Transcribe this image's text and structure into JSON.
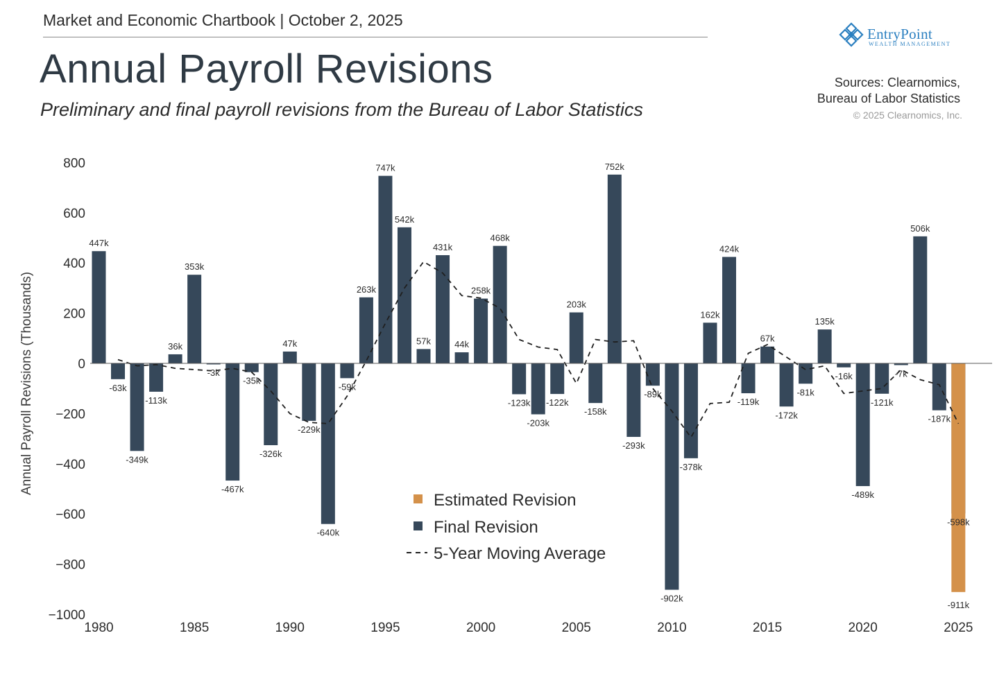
{
  "header": {
    "top_line": "Market and Economic Chartbook | October 2, 2025",
    "title": "Annual Payroll Revisions",
    "subtitle": "Preliminary and final payroll revisions from the Bureau of Labor Statistics"
  },
  "logo": {
    "word": "EntryPoint",
    "sub": "WEALTH MANAGEMENT",
    "icon": "diamond-logo-icon"
  },
  "sources": {
    "line1": "Sources: Clearnomics,",
    "line2": "Bureau of Labor Statistics",
    "copyright": "© 2025 Clearnomics, Inc."
  },
  "colors": {
    "final": "#36485a",
    "estimated": "#d4914a",
    "average": "#1f1f1f"
  },
  "chart_data": {
    "type": "bar",
    "title": "Annual Payroll Revisions",
    "ylabel": "Annual Payroll Revisions (Thousands)",
    "xlabel": "",
    "ylim": [
      -1000,
      800
    ],
    "yticks": [
      800,
      600,
      400,
      200,
      0,
      -200,
      -400,
      -600,
      -800,
      -1000
    ],
    "ytick_labels": [
      "800",
      "600",
      "400",
      "200",
      "0",
      "−200",
      "−400",
      "−600",
      "−800",
      "−1000"
    ],
    "xticks": [
      "1980",
      "1985",
      "1990",
      "1995",
      "2000",
      "2005",
      "2010",
      "2015",
      "2020",
      "2025"
    ],
    "x": [
      1980,
      1981,
      1982,
      1983,
      1984,
      1985,
      1986,
      1987,
      1988,
      1989,
      1990,
      1991,
      1992,
      1993,
      1994,
      1995,
      1996,
      1997,
      1998,
      1999,
      2000,
      2001,
      2002,
      2003,
      2004,
      2005,
      2006,
      2007,
      2008,
      2009,
      2010,
      2011,
      2012,
      2013,
      2014,
      2015,
      2016,
      2017,
      2018,
      2019,
      2020,
      2021,
      2022,
      2023,
      2024,
      2025
    ],
    "series": [
      {
        "name": "Final Revision",
        "values": [
          447,
          -63,
          -349,
          -113,
          36,
          353,
          -3,
          -467,
          -35,
          -326,
          47,
          -229,
          -640,
          -59,
          263,
          747,
          542,
          57,
          431,
          44,
          258,
          468,
          -123,
          -203,
          -122,
          203,
          -158,
          752,
          -293,
          -89,
          -902,
          -378,
          162,
          424,
          -119,
          67,
          -172,
          -81,
          135,
          -16,
          -489,
          -121,
          -7,
          506,
          -187,
          -598
        ],
        "labels": [
          "447k",
          "-63k",
          "-349k",
          "-113k",
          "36k",
          "353k",
          "-3k",
          "-467k",
          "-35k",
          "-326k",
          "47k",
          "-229k",
          "-640k",
          "-59k",
          "263k",
          "747k",
          "542k",
          "57k",
          "431k",
          "44k",
          "258k",
          "468k",
          "-123k",
          "-203k",
          "-122k",
          "203k",
          "-158k",
          "752k",
          "-293k",
          "-89k",
          "-902k",
          "-378k",
          "162k",
          "424k",
          "-119k",
          "67k",
          "-172k",
          "-81k",
          "135k",
          "-16k",
          "-489k",
          "-121k",
          "-7k",
          "506k",
          "-187k",
          "-598k"
        ]
      },
      {
        "name": "Estimated Revision",
        "x": 2025,
        "value": -911,
        "label": "-911k"
      },
      {
        "name": "5-Year Moving Average",
        "x": [
          1981,
          1982,
          1983,
          1984,
          1985,
          1986,
          1987,
          1988,
          1989,
          1990,
          1991,
          1992,
          1993,
          1994,
          1995,
          1996,
          1997,
          1998,
          1999,
          2000,
          2001,
          2002,
          2003,
          2004,
          2005,
          2006,
          2007,
          2008,
          2009,
          2010,
          2011,
          2012,
          2013,
          2014,
          2015,
          2016,
          2017,
          2018,
          2019,
          2020,
          2021,
          2022,
          2023,
          2024,
          2025
        ],
        "values": [
          15,
          -10,
          -5,
          -20,
          -25,
          -30,
          -20,
          -35,
          -110,
          -200,
          -235,
          -240,
          -130,
          10,
          160,
          300,
          405,
          360,
          270,
          260,
          220,
          95,
          65,
          55,
          -80,
          95,
          85,
          90,
          -100,
          -190,
          -295,
          -160,
          -155,
          40,
          75,
          25,
          -25,
          -10,
          -120,
          -110,
          -100,
          -25,
          -65,
          -85,
          -240
        ]
      }
    ],
    "legend": [
      "Estimated Revision",
      "Final Revision",
      "5-Year Moving Average"
    ],
    "legend_position": "bottom-center",
    "grid": false
  }
}
